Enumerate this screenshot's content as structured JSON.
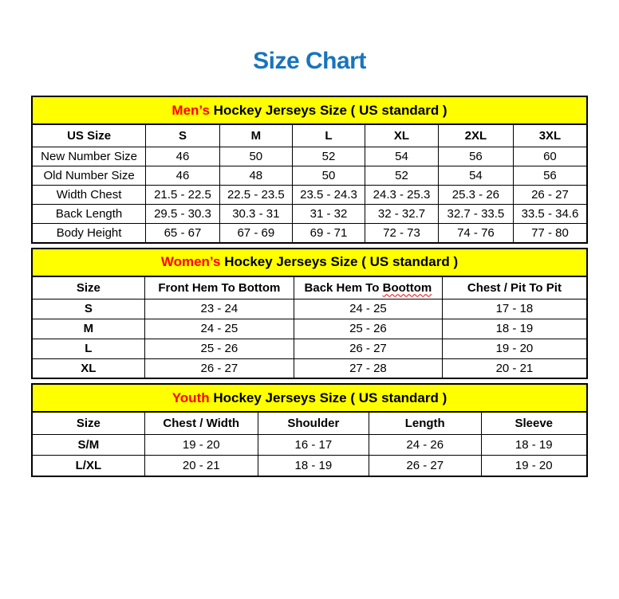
{
  "title": "Size Chart",
  "colors": {
    "title": "#1874bc",
    "heading_bg": "#ffff00",
    "accent": "#ff0000",
    "border": "#000000"
  },
  "sections": [
    {
      "id": "mens",
      "heading_accent": "Men’s",
      "heading_rest": " Hockey Jerseys Size ( US standard )",
      "columns": [
        "US Size",
        "S",
        "M",
        "L",
        "XL",
        "2XL",
        "3XL"
      ],
      "rows": [
        [
          "New Number Size",
          "46",
          "50",
          "52",
          "54",
          "56",
          "60"
        ],
        [
          "Old Number Size",
          "46",
          "48",
          "50",
          "52",
          "54",
          "56"
        ],
        [
          "Width Chest",
          "21.5 - 22.5",
          "22.5 - 23.5",
          "23.5 - 24.3",
          "24.3 - 25.3",
          "25.3 - 26",
          "26 - 27"
        ],
        [
          "Back Length",
          "29.5 - 30.3",
          "30.3 - 31",
          "31 - 32",
          "32 - 32.7",
          "32.7 - 33.5",
          "33.5 - 34.6"
        ],
        [
          "Body Height",
          "65 - 67",
          "67 - 69",
          "69 - 71",
          "72 - 73",
          "74 - 76",
          "77 - 80"
        ]
      ]
    },
    {
      "id": "womens",
      "heading_accent": "Women’s",
      "heading_rest": " Hockey Jerseys Size ( US standard )",
      "columns": [
        "Size",
        "Front Hem To Bottom",
        "Back Hem To Boottom",
        "Chest / Pit To Pit"
      ],
      "spellcheck": {
        "column": 2,
        "word": "Boottom"
      },
      "rows": [
        [
          "S",
          "23 - 24",
          "24 - 25",
          "17 - 18"
        ],
        [
          "M",
          "24 - 25",
          "25 - 26",
          "18 - 19"
        ],
        [
          "L",
          "25 - 26",
          "26 - 27",
          "19 - 20"
        ],
        [
          "XL",
          "26 - 27",
          "27 - 28",
          "20 - 21"
        ]
      ]
    },
    {
      "id": "youth",
      "heading_accent": "Youth",
      "heading_rest": " Hockey Jerseys Size ( US standard )",
      "columns": [
        "Size",
        "Chest / Width",
        "Shoulder",
        "Length",
        "Sleeve"
      ],
      "rows": [
        [
          "S/M",
          "19 - 20",
          "16 - 17",
          "24 - 26",
          "18 - 19"
        ],
        [
          "L/XL",
          "20 - 21",
          "18 - 19",
          "26 - 27",
          "19 - 20"
        ]
      ]
    }
  ]
}
